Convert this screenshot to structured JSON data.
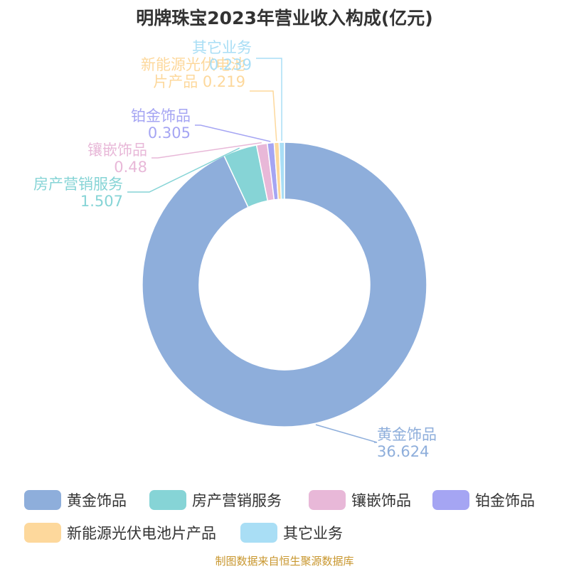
{
  "chart_data": {
    "type": "pie",
    "donut": true,
    "title": "明牌珠宝2023年营业收入构成(亿元)",
    "categories": [
      "黄金饰品",
      "房产营销服务",
      "镶嵌饰品",
      "铂金饰品",
      "新能源光伏电池片产品",
      "其它业务"
    ],
    "values": [
      36.624,
      1.507,
      0.48,
      0.305,
      0.219,
      0.239
    ],
    "colors": [
      "#8eaedb",
      "#86d4d6",
      "#e8b8d8",
      "#a5a5f3",
      "#fdd89c",
      "#a9def5"
    ],
    "legend": "bottom"
  },
  "labels": [
    {
      "name": [
        "黄金饰品"
      ],
      "value": "36.624"
    },
    {
      "name": [
        "房产营销服务"
      ],
      "value": "1.507"
    },
    {
      "name": [
        "镶嵌饰品"
      ],
      "value": "0.48"
    },
    {
      "name": [
        "铂金饰品"
      ],
      "value": "0.305"
    },
    {
      "name": [
        "新能源光伏电池",
        "片产品"
      ],
      "value": "0.219"
    },
    {
      "name": [
        "其它业务"
      ],
      "value": "0.239"
    }
  ],
  "source_note": "制图数据来自恒生聚源数据库"
}
